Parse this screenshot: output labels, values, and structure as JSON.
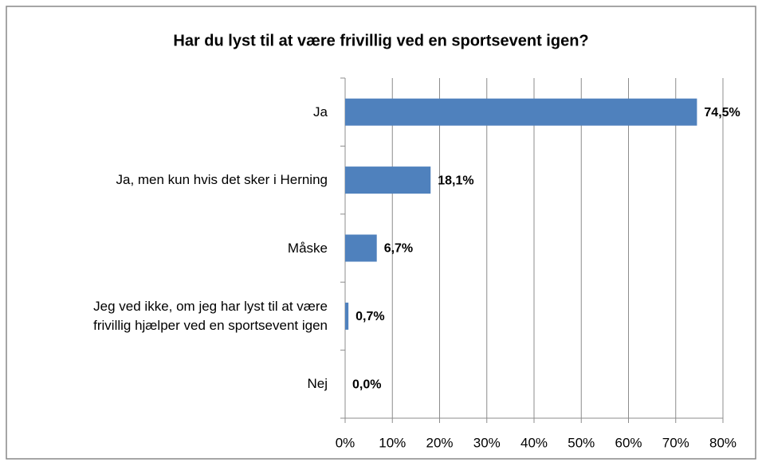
{
  "chart_data": {
    "type": "bar",
    "orientation": "horizontal",
    "title": "Har du lyst til at være frivillig ved en sportsevent igen?",
    "categories": [
      "Ja",
      "Ja, men kun hvis det sker i Herning",
      "Måske",
      "Jeg ved ikke, om jeg har lyst til at være\nfrivillig hjælper ved en sportsevent igen",
      "Nej"
    ],
    "values": [
      74.5,
      18.1,
      6.7,
      0.7,
      0.0
    ],
    "value_labels": [
      "74,5%",
      "18,1%",
      "6,7%",
      "0,7%",
      "0,0%"
    ],
    "color": "#4f81bd",
    "xlim": [
      0,
      80
    ],
    "xticks": [
      {
        "value": 0,
        "label": "0%"
      },
      {
        "value": 10,
        "label": "10%"
      },
      {
        "value": 20,
        "label": "20%"
      },
      {
        "value": 30,
        "label": "30%"
      },
      {
        "value": 40,
        "label": "40%"
      },
      {
        "value": 50,
        "label": "50%"
      },
      {
        "value": 60,
        "label": "60%"
      },
      {
        "value": 70,
        "label": "70%"
      },
      {
        "value": 80,
        "label": "80%"
      }
    ],
    "grid": true
  }
}
